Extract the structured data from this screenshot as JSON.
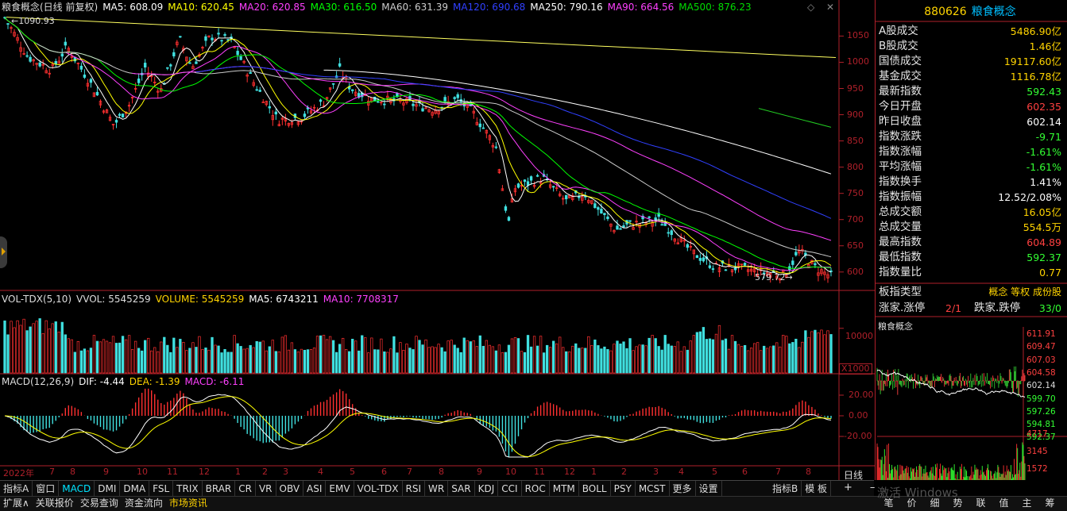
{
  "header": {
    "title": "粮食概念(日线 前复权)",
    "ma": [
      {
        "label": "MA5: 608.09",
        "color": "#ffffff"
      },
      {
        "label": "MA10: 620.45",
        "color": "#ffff00"
      },
      {
        "label": "MA20: 620.85",
        "color": "#ff40ff"
      },
      {
        "label": "MA30: 616.50",
        "color": "#00ff00"
      },
      {
        "label": "MA60: 631.39",
        "color": "#cccccc"
      },
      {
        "label": "MA120: 690.68",
        "color": "#3040ff"
      },
      {
        "label": "MA250: 790.16",
        "color": "#ffffff"
      },
      {
        "label": "MA90: 664.56",
        "color": "#ff40ff"
      },
      {
        "label": "MA500: 876.23",
        "color": "#00dd00"
      }
    ]
  },
  "main_chart": {
    "high_annotation": "1090.93",
    "low_annotation": "579.72",
    "y_ticks": [
      "1050",
      "1000",
      "950",
      "900",
      "850",
      "800",
      "750",
      "700",
      "650",
      "600"
    ],
    "x_ticks": [
      "2022年",
      "7",
      "8",
      "9",
      "10",
      "11",
      "12",
      "1",
      "2",
      "3",
      "4",
      "5",
      "6",
      "7",
      "8",
      "9",
      "10",
      "11",
      "12",
      "1",
      "2",
      "3",
      "4",
      "5",
      "6",
      "7",
      "8"
    ]
  },
  "volume": {
    "header_name": "VOL-TDX(5,10)",
    "vvol": "VVOL: 5545259",
    "volume": "VOLUME: 5545259",
    "ma5": "MA5: 6743211",
    "ma10": "MA10: 7708317",
    "y_tick": "10000",
    "unit": "X1000"
  },
  "macd": {
    "header_name": "MACD(12,26,9)",
    "dif": "DIF: -4.44",
    "dea": "DEA: -1.39",
    "macd": "MACD: -6.11",
    "y_ticks": [
      "20.00",
      "0.00",
      "-20.00"
    ]
  },
  "tabs": [
    "指标A",
    "窗口",
    "MACD",
    "DMI",
    "DMA",
    "FSL",
    "TRIX",
    "BRAR",
    "CR",
    "VR",
    "OBV",
    "ASI",
    "EMV",
    "VOL-TDX",
    "RSI",
    "WR",
    "SAR",
    "KDJ",
    "CCI",
    "ROC",
    "MTM",
    "BOLL",
    "PSY",
    "MCST",
    "更多",
    "设置"
  ],
  "active_tab": "MACD",
  "right_tabs": [
    "指标B",
    "模 板"
  ],
  "period_label": "日线",
  "bottom_bar": [
    "扩展∧",
    "关联报价",
    "交易查询",
    "资金流向",
    "市场资讯"
  ],
  "right_panel": {
    "code": "880626",
    "name": "粮食概念",
    "rows": [
      {
        "label": "A股成交",
        "value": "5486.90亿",
        "color": "#ffd400"
      },
      {
        "label": "B股成交",
        "value": "1.46亿",
        "color": "#ffd400"
      },
      {
        "label": "国债成交",
        "value": "19117.60亿",
        "color": "#ffd400"
      },
      {
        "label": "基金成交",
        "value": "1116.78亿",
        "color": "#ffd400"
      },
      {
        "label": "最新指数",
        "value": "592.43",
        "color": "#33ff33"
      },
      {
        "label": "今日开盘",
        "value": "602.35",
        "color": "#ff4040"
      },
      {
        "label": "昨日收盘",
        "value": "602.14",
        "color": "#ffffff"
      },
      {
        "label": "指数涨跌",
        "value": "-9.71",
        "color": "#33ff33"
      },
      {
        "label": "指数涨幅",
        "value": "-1.61%",
        "color": "#33ff33"
      },
      {
        "label": "平均涨幅",
        "value": "-1.61%",
        "color": "#33ff33"
      },
      {
        "label": "指数换手",
        "value": "1.41%",
        "color": "#ffffff"
      },
      {
        "label": "指数振幅",
        "value": "12.52/2.08%",
        "color": "#ffffff"
      },
      {
        "label": "总成交额",
        "value": "16.05亿",
        "color": "#ffd400"
      },
      {
        "label": "总成交量",
        "value": "554.5万",
        "color": "#ffd400"
      },
      {
        "label": "最高指数",
        "value": "604.89",
        "color": "#ff4040"
      },
      {
        "label": "最低指数",
        "value": "592.37",
        "color": "#33ff33"
      },
      {
        "label": "指数量比",
        "value": "0.77",
        "color": "#ffd400"
      }
    ],
    "board_type_label": "板指类型",
    "board_type_value": "概念 等权 成份股",
    "limit_up_label": "涨家.涨停",
    "limit_up_value": "2/1",
    "limit_down_label": "跌家.跌停",
    "limit_down_value": "33/0"
  },
  "mini_chart": {
    "title": "粮食概念",
    "right_ticks": [
      "611.91",
      "609.47",
      "607.03",
      "604.58",
      "602.14",
      "599.70",
      "597.26",
      "594.81",
      "592.37"
    ],
    "vol_ticks": [
      "4717",
      "3145",
      "1572"
    ],
    "watermark": "激活 Windows",
    "bottom_tabs": [
      "笔",
      "价",
      "细",
      "势",
      "联",
      "值",
      "主",
      "筹"
    ]
  }
}
